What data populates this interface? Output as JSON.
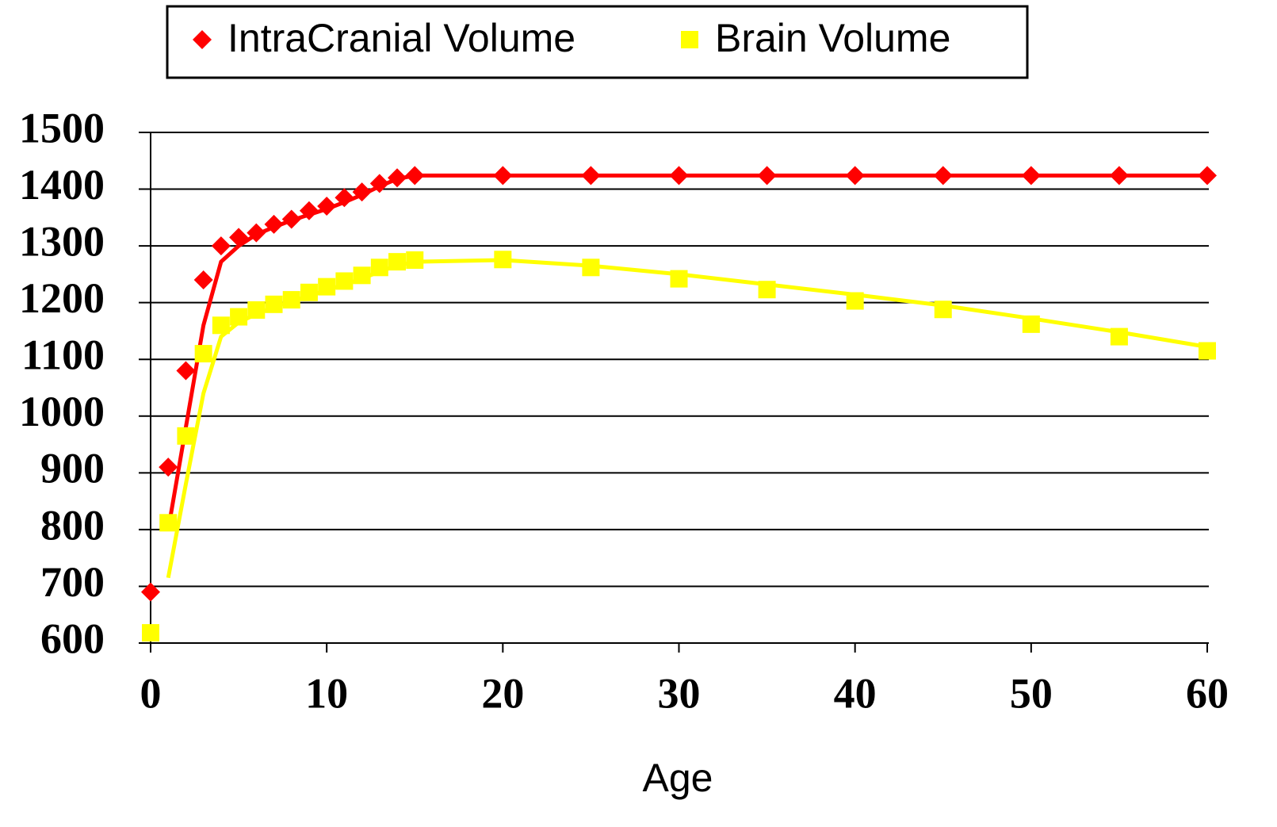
{
  "chart_data": {
    "type": "line",
    "x_label": "Age",
    "x": [
      0,
      1,
      2,
      3,
      4,
      5,
      6,
      7,
      8,
      9,
      10,
      11,
      12,
      13,
      14,
      15,
      20,
      25,
      30,
      35,
      40,
      45,
      50,
      55,
      60
    ],
    "series": [
      {
        "name": "IntraCranial Volume",
        "color": "#ff0000",
        "marker": "diamond",
        "values": [
          690,
          910,
          1080,
          1240,
          1300,
          1315,
          1323,
          1338,
          1347,
          1362,
          1370,
          1385,
          1395,
          1410,
          1420,
          1424,
          1424,
          1424,
          1424,
          1424,
          1424,
          1424,
          1424,
          1424,
          1424
        ],
        "fit": [
          null,
          800,
          980,
          1160,
          1272,
          1300,
          1320,
          1333,
          1345,
          1355,
          1365,
          1377,
          1390,
          1405,
          1418,
          1424,
          1424,
          1424,
          1424,
          1424,
          1424,
          1424,
          1424,
          1424,
          1424
        ]
      },
      {
        "name": "Brain Volume",
        "color": "#ffff00",
        "marker": "square",
        "values": [
          618,
          812,
          965,
          1110,
          1160,
          1175,
          1187,
          1197,
          1205,
          1218,
          1228,
          1238,
          1248,
          1262,
          1272,
          1275,
          1276,
          1262,
          1242,
          1223,
          1203,
          1188,
          1162,
          1140,
          1115
        ],
        "fit": [
          null,
          715,
          880,
          1040,
          1140,
          1165,
          1180,
          1192,
          1202,
          1212,
          1222,
          1232,
          1242,
          1255,
          1265,
          1272,
          1275,
          1265,
          1250,
          1232,
          1214,
          1195,
          1172,
          1148,
          1122
        ]
      }
    ],
    "xlim": [
      0,
      60
    ],
    "xticks": [
      0,
      10,
      20,
      30,
      40,
      50,
      60
    ],
    "ylim": [
      600,
      1500
    ],
    "yticks": [
      600,
      700,
      800,
      900,
      1000,
      1100,
      1200,
      1300,
      1400,
      1500
    ],
    "grid": true,
    "legend": "top"
  }
}
